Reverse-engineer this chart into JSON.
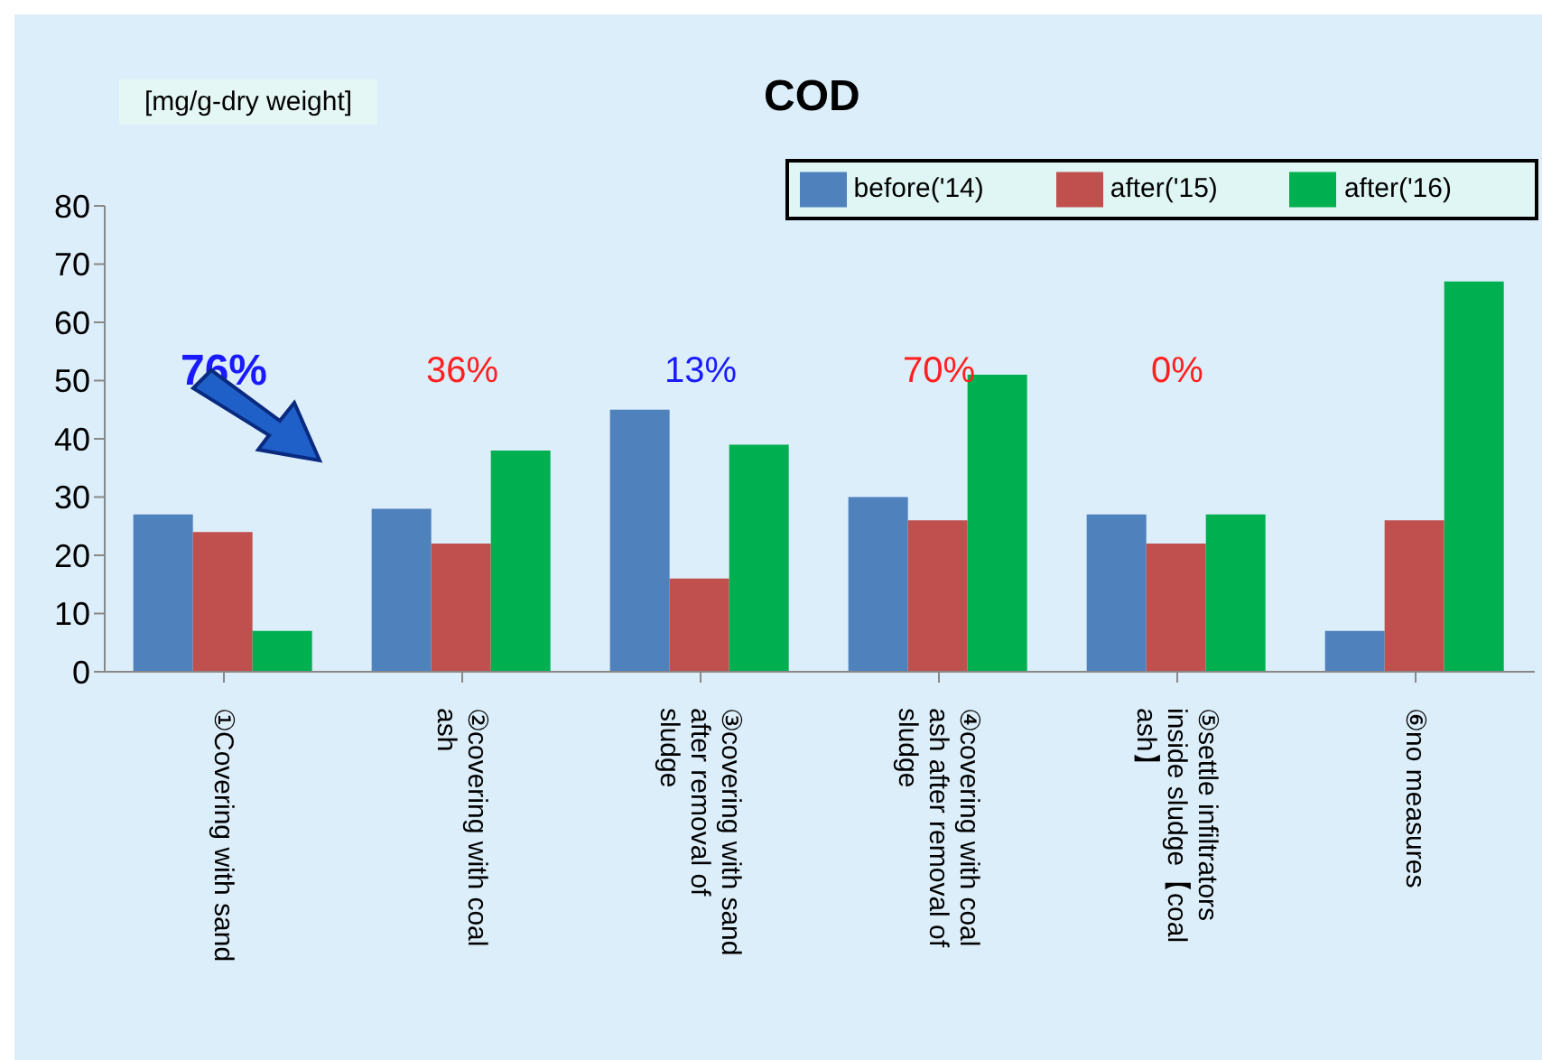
{
  "chart_data": {
    "type": "bar",
    "title": "COD",
    "ylabel": "[mg/g-dry weight]",
    "categories": [
      "①Covering with sand",
      "②covering with coal ash",
      "③covering with sand after removal of sludge",
      "④covering with coal ash after removal of sludge",
      "⑤settle infiltrators inside sludge【coal ash】",
      "⑥no measures"
    ],
    "series": [
      {
        "name": "before('14)",
        "color": "#4f81bd",
        "values": [
          27,
          28,
          45,
          30,
          27,
          7
        ]
      },
      {
        "name": "after('15)",
        "color": "#c0504d",
        "values": [
          24,
          22,
          16,
          26,
          22,
          26
        ]
      },
      {
        "name": "after('16)",
        "color": "#00b050",
        "values": [
          7,
          38,
          39,
          51,
          27,
          67
        ]
      }
    ],
    "ylim": [
      0,
      80
    ],
    "yticks": [
      0,
      10,
      20,
      30,
      40,
      50,
      60,
      70,
      80
    ],
    "grid": false,
    "legend": "top right",
    "annotations": [
      "76%",
      "36%",
      "13%",
      "70%",
      "0%"
    ]
  }
}
